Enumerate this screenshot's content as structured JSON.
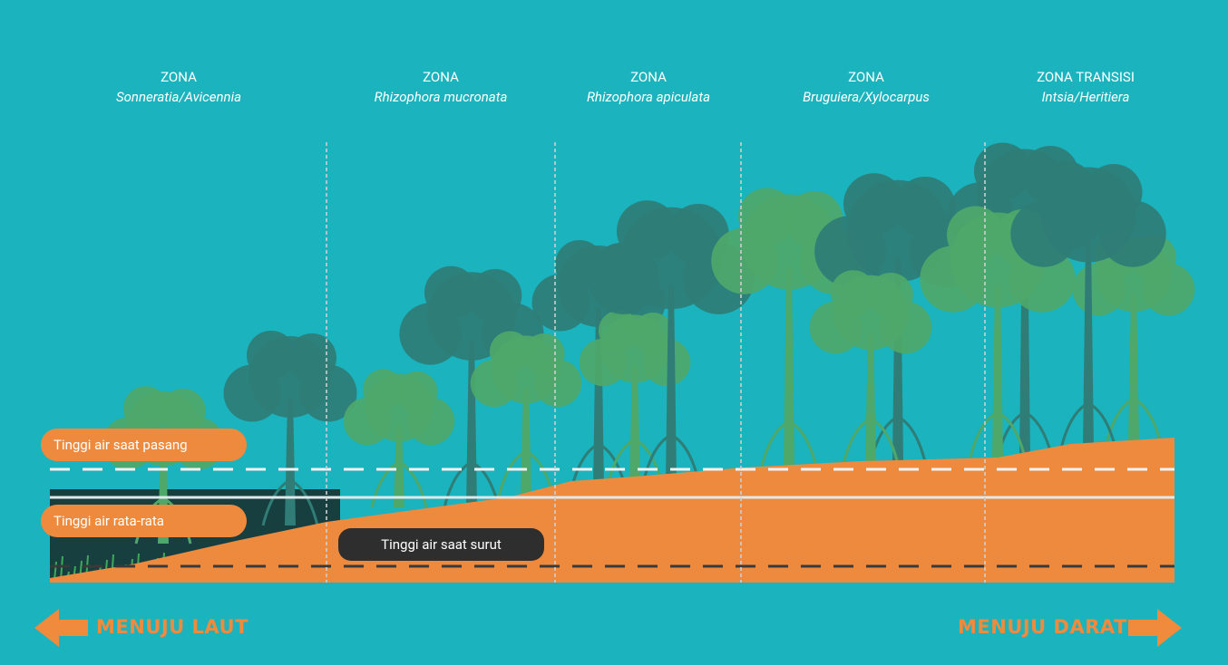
{
  "zones": [
    {
      "label": "ZONA",
      "species": "Sonneratia/Avicennia"
    },
    {
      "label": "ZONA",
      "species": "Rhizophora mucronata"
    },
    {
      "label": "ZONA",
      "species": "Rhizophora apiculata"
    },
    {
      "label": "ZONA",
      "species": "Bruguiera/Xylocarpus"
    },
    {
      "label": "ZONA TRANSISI",
      "species": "Intsia/Heritiera"
    }
  ],
  "water_levels": {
    "high": "Tinggi air saat pasang",
    "mean": "Tinggi air rata-rata",
    "low": "Tinggi air saat surut"
  },
  "directions": {
    "sea": "MENUJU LAUT",
    "land": "MENUJU DARAT"
  }
}
